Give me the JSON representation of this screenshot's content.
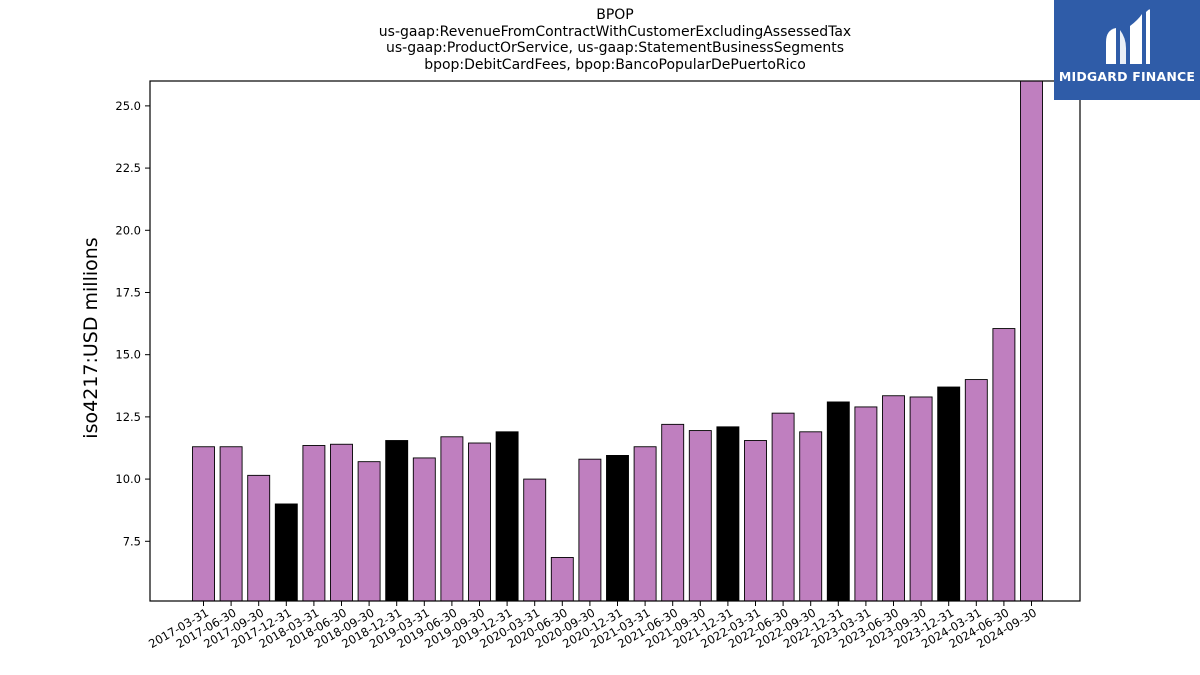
{
  "logo": {
    "text": "MIDGARD FINANCE",
    "icon": "midgard-logo-icon"
  },
  "chart_data": {
    "type": "bar",
    "title_lines": [
      "BPOP",
      "us-gaap:RevenueFromContractWithCustomerExcludingAssessedTax",
      "us-gaap:ProductOrService, us-gaap:StatementBusinessSegments",
      "bpop:DebitCardFees, bpop:BancoPopularDePuertoRico"
    ],
    "ylabel": "iso4217:USD  millions",
    "xlabel": "",
    "ylim": [
      5.1,
      26.0
    ],
    "yticks": [
      "7.5",
      "10.0",
      "12.5",
      "15.0",
      "17.5",
      "20.0",
      "22.5",
      "25.0"
    ],
    "grid": false,
    "colors": {
      "regular": "#bf7fbf",
      "q4": "#000000"
    },
    "categories": [
      "2017-03-31",
      "2017-06-30",
      "2017-09-30",
      "2017-12-31",
      "2018-03-31",
      "2018-06-30",
      "2018-09-30",
      "2018-12-31",
      "2019-03-31",
      "2019-06-30",
      "2019-09-30",
      "2019-12-31",
      "2020-03-31",
      "2020-06-30",
      "2020-09-30",
      "2020-12-31",
      "2021-03-31",
      "2021-06-30",
      "2021-09-30",
      "2021-12-31",
      "2022-03-31",
      "2022-06-30",
      "2022-09-30",
      "2022-12-31",
      "2023-03-31",
      "2023-06-30",
      "2023-09-30",
      "2023-12-31",
      "2024-03-31",
      "2024-06-30",
      "2024-09-30"
    ],
    "values": [
      11.3,
      11.3,
      10.15,
      9.0,
      11.35,
      11.4,
      10.7,
      11.55,
      10.85,
      11.7,
      11.45,
      11.9,
      10.0,
      6.85,
      10.8,
      10.95,
      11.3,
      12.2,
      11.95,
      12.1,
      11.55,
      12.65,
      11.9,
      13.1,
      12.9,
      13.35,
      13.3,
      13.7,
      14.0,
      16.05,
      26.0
    ],
    "highlight": [
      false,
      false,
      false,
      true,
      false,
      false,
      false,
      true,
      false,
      false,
      false,
      true,
      false,
      false,
      false,
      true,
      false,
      false,
      false,
      true,
      false,
      false,
      false,
      true,
      false,
      false,
      false,
      true,
      false,
      false,
      false
    ]
  }
}
